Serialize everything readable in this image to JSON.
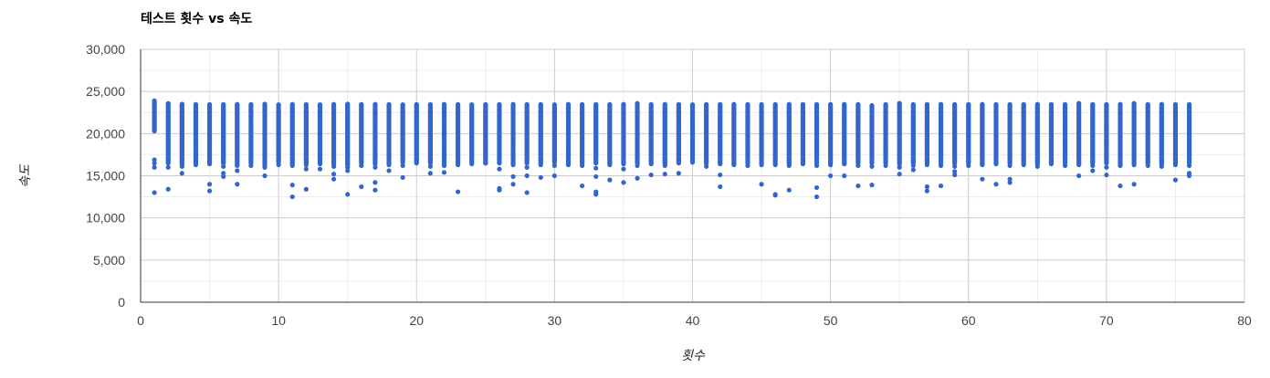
{
  "chart_data": {
    "type": "scatter",
    "title": "테스트 횟수 vs 속도",
    "xlabel": "횟수",
    "ylabel": "속도",
    "xlim": [
      0,
      80
    ],
    "ylim": [
      0,
      30000
    ],
    "x_ticks": [
      0,
      10,
      20,
      30,
      40,
      50,
      60,
      70,
      80
    ],
    "y_ticks": [
      0,
      5000,
      10000,
      15000,
      20000,
      25000,
      30000
    ],
    "x_tick_labels": [
      "0",
      "10",
      "20",
      "30",
      "40",
      "50",
      "60",
      "70",
      "80"
    ],
    "y_tick_labels": [
      "0",
      "5,000",
      "10,000",
      "15,000",
      "20,000",
      "25,000",
      "30,000"
    ],
    "grid": true,
    "legend": "none",
    "point_color": "#3366cc",
    "series": [
      {
        "comment_hidden": "",
        "dense_bands": [
          {
            "x": 1,
            "y_min": 20300,
            "y_max": 24000
          },
          {
            "x": 2,
            "y_min": 16500,
            "y_max": 23600
          },
          {
            "x": 3,
            "y_min": 16300,
            "y_max": 23500
          },
          {
            "x": 4,
            "y_min": 16500,
            "y_max": 23500
          },
          {
            "x": 5,
            "y_min": 16500,
            "y_max": 23500
          },
          {
            "x": 6,
            "y_min": 16500,
            "y_max": 23500
          },
          {
            "x": 7,
            "y_min": 16400,
            "y_max": 23500
          },
          {
            "x": 8,
            "y_min": 16500,
            "y_max": 23500
          },
          {
            "x": 9,
            "y_min": 16300,
            "y_max": 23500
          },
          {
            "x": 10,
            "y_min": 16600,
            "y_max": 23500
          },
          {
            "x": 11,
            "y_min": 16400,
            "y_max": 23500
          },
          {
            "x": 12,
            "y_min": 16500,
            "y_max": 23500
          },
          {
            "x": 13,
            "y_min": 16600,
            "y_max": 23500
          },
          {
            "x": 14,
            "y_min": 16400,
            "y_max": 23500
          },
          {
            "x": 15,
            "y_min": 16300,
            "y_max": 23600
          },
          {
            "x": 16,
            "y_min": 16500,
            "y_max": 23500
          },
          {
            "x": 17,
            "y_min": 16400,
            "y_max": 23500
          },
          {
            "x": 18,
            "y_min": 16500,
            "y_max": 23500
          },
          {
            "x": 19,
            "y_min": 16600,
            "y_max": 23500
          },
          {
            "x": 20,
            "y_min": 16500,
            "y_max": 23500
          },
          {
            "x": 21,
            "y_min": 16500,
            "y_max": 23500
          },
          {
            "x": 22,
            "y_min": 16400,
            "y_max": 23500
          },
          {
            "x": 23,
            "y_min": 16500,
            "y_max": 23500
          },
          {
            "x": 24,
            "y_min": 16600,
            "y_max": 23500
          },
          {
            "x": 25,
            "y_min": 16500,
            "y_max": 23500
          },
          {
            "x": 26,
            "y_min": 16500,
            "y_max": 23500
          },
          {
            "x": 27,
            "y_min": 16400,
            "y_max": 23500
          },
          {
            "x": 28,
            "y_min": 16500,
            "y_max": 23500
          },
          {
            "x": 29,
            "y_min": 16500,
            "y_max": 23500
          },
          {
            "x": 30,
            "y_min": 16600,
            "y_max": 23500
          },
          {
            "x": 31,
            "y_min": 16400,
            "y_max": 23500
          },
          {
            "x": 32,
            "y_min": 16500,
            "y_max": 23500
          },
          {
            "x": 33,
            "y_min": 16500,
            "y_max": 23500
          },
          {
            "x": 34,
            "y_min": 16500,
            "y_max": 23500
          },
          {
            "x": 35,
            "y_min": 16400,
            "y_max": 23500
          },
          {
            "x": 36,
            "y_min": 16500,
            "y_max": 23600
          },
          {
            "x": 37,
            "y_min": 16500,
            "y_max": 23500
          },
          {
            "x": 38,
            "y_min": 16400,
            "y_max": 23500
          },
          {
            "x": 39,
            "y_min": 16500,
            "y_max": 23500
          },
          {
            "x": 40,
            "y_min": 16600,
            "y_max": 23500
          },
          {
            "x": 41,
            "y_min": 16500,
            "y_max": 23500
          },
          {
            "x": 42,
            "y_min": 16500,
            "y_max": 23500
          },
          {
            "x": 43,
            "y_min": 16400,
            "y_max": 23500
          },
          {
            "x": 44,
            "y_min": 16500,
            "y_max": 23500
          },
          {
            "x": 45,
            "y_min": 16500,
            "y_max": 23500
          },
          {
            "x": 46,
            "y_min": 16500,
            "y_max": 23500
          },
          {
            "x": 47,
            "y_min": 16400,
            "y_max": 23500
          },
          {
            "x": 48,
            "y_min": 16500,
            "y_max": 23500
          },
          {
            "x": 49,
            "y_min": 16500,
            "y_max": 23500
          },
          {
            "x": 50,
            "y_min": 16500,
            "y_max": 23500
          },
          {
            "x": 51,
            "y_min": 16400,
            "y_max": 23500
          },
          {
            "x": 52,
            "y_min": 16500,
            "y_max": 23500
          },
          {
            "x": 53,
            "y_min": 16500,
            "y_max": 23400
          },
          {
            "x": 54,
            "y_min": 16500,
            "y_max": 23500
          },
          {
            "x": 55,
            "y_min": 16400,
            "y_max": 23600
          },
          {
            "x": 56,
            "y_min": 16500,
            "y_max": 23500
          },
          {
            "x": 57,
            "y_min": 16500,
            "y_max": 23500
          },
          {
            "x": 58,
            "y_min": 16400,
            "y_max": 23500
          },
          {
            "x": 59,
            "y_min": 16500,
            "y_max": 23500
          },
          {
            "x": 60,
            "y_min": 16500,
            "y_max": 23500
          },
          {
            "x": 61,
            "y_min": 16400,
            "y_max": 23500
          },
          {
            "x": 62,
            "y_min": 16500,
            "y_max": 23500
          },
          {
            "x": 63,
            "y_min": 16500,
            "y_max": 23500
          },
          {
            "x": 64,
            "y_min": 16500,
            "y_max": 23500
          },
          {
            "x": 65,
            "y_min": 16400,
            "y_max": 23500
          },
          {
            "x": 66,
            "y_min": 16500,
            "y_max": 23500
          },
          {
            "x": 67,
            "y_min": 16500,
            "y_max": 23500
          },
          {
            "x": 68,
            "y_min": 16400,
            "y_max": 23600
          },
          {
            "x": 69,
            "y_min": 16500,
            "y_max": 23500
          },
          {
            "x": 70,
            "y_min": 16500,
            "y_max": 23500
          },
          {
            "x": 71,
            "y_min": 16400,
            "y_max": 23500
          },
          {
            "x": 72,
            "y_min": 16500,
            "y_max": 23600
          },
          {
            "x": 73,
            "y_min": 16500,
            "y_max": 23500
          },
          {
            "x": 74,
            "y_min": 16400,
            "y_max": 23500
          },
          {
            "x": 75,
            "y_min": 16500,
            "y_max": 23500
          },
          {
            "x": 76,
            "y_min": 16500,
            "y_max": 23500
          }
        ],
        "outliers": [
          {
            "x": 1,
            "y": 16000
          },
          {
            "x": 1,
            "y": 16500
          },
          {
            "x": 1,
            "y": 16900
          },
          {
            "x": 1,
            "y": 13000
          },
          {
            "x": 2,
            "y": 13400
          },
          {
            "x": 2,
            "y": 16000
          },
          {
            "x": 3,
            "y": 15300
          },
          {
            "x": 3,
            "y": 16100
          },
          {
            "x": 4,
            "y": 16300
          },
          {
            "x": 5,
            "y": 13200
          },
          {
            "x": 5,
            "y": 14000
          },
          {
            "x": 5,
            "y": 16400
          },
          {
            "x": 6,
            "y": 14900
          },
          {
            "x": 6,
            "y": 15300
          },
          {
            "x": 6,
            "y": 16100
          },
          {
            "x": 7,
            "y": 14000
          },
          {
            "x": 7,
            "y": 15600
          },
          {
            "x": 7,
            "y": 16200
          },
          {
            "x": 8,
            "y": 16200
          },
          {
            "x": 9,
            "y": 15000
          },
          {
            "x": 9,
            "y": 16000
          },
          {
            "x": 10,
            "y": 16300
          },
          {
            "x": 11,
            "y": 12500
          },
          {
            "x": 11,
            "y": 13900
          },
          {
            "x": 11,
            "y": 16200
          },
          {
            "x": 12,
            "y": 13400
          },
          {
            "x": 12,
            "y": 15800
          },
          {
            "x": 12,
            "y": 16300
          },
          {
            "x": 13,
            "y": 15800
          },
          {
            "x": 13,
            "y": 16400
          },
          {
            "x": 14,
            "y": 14600
          },
          {
            "x": 14,
            "y": 15200
          },
          {
            "x": 14,
            "y": 16100
          },
          {
            "x": 15,
            "y": 12800
          },
          {
            "x": 15,
            "y": 15600
          },
          {
            "x": 15,
            "y": 16000
          },
          {
            "x": 16,
            "y": 13700
          },
          {
            "x": 16,
            "y": 16200
          },
          {
            "x": 17,
            "y": 13300
          },
          {
            "x": 17,
            "y": 14200
          },
          {
            "x": 17,
            "y": 16000
          },
          {
            "x": 18,
            "y": 15600
          },
          {
            "x": 18,
            "y": 16300
          },
          {
            "x": 19,
            "y": 14800
          },
          {
            "x": 19,
            "y": 16200
          },
          {
            "x": 21,
            "y": 15300
          },
          {
            "x": 21,
            "y": 16100
          },
          {
            "x": 22,
            "y": 15400
          },
          {
            "x": 22,
            "y": 16200
          },
          {
            "x": 23,
            "y": 13100
          },
          {
            "x": 23,
            "y": 16300
          },
          {
            "x": 24,
            "y": 16400
          },
          {
            "x": 25,
            "y": 16500
          },
          {
            "x": 26,
            "y": 13500
          },
          {
            "x": 26,
            "y": 13300
          },
          {
            "x": 26,
            "y": 15800
          },
          {
            "x": 27,
            "y": 14000
          },
          {
            "x": 27,
            "y": 14900
          },
          {
            "x": 27,
            "y": 16300
          },
          {
            "x": 28,
            "y": 13000
          },
          {
            "x": 28,
            "y": 15000
          },
          {
            "x": 28,
            "y": 16000
          },
          {
            "x": 29,
            "y": 14800
          },
          {
            "x": 29,
            "y": 16300
          },
          {
            "x": 30,
            "y": 15000
          },
          {
            "x": 30,
            "y": 16200
          },
          {
            "x": 31,
            "y": 16300
          },
          {
            "x": 32,
            "y": 13800
          },
          {
            "x": 32,
            "y": 16200
          },
          {
            "x": 33,
            "y": 12800
          },
          {
            "x": 33,
            "y": 13100
          },
          {
            "x": 33,
            "y": 14900
          },
          {
            "x": 33,
            "y": 15900
          },
          {
            "x": 34,
            "y": 14500
          },
          {
            "x": 34,
            "y": 16300
          },
          {
            "x": 35,
            "y": 14200
          },
          {
            "x": 35,
            "y": 15800
          },
          {
            "x": 36,
            "y": 14700
          },
          {
            "x": 36,
            "y": 16200
          },
          {
            "x": 37,
            "y": 15100
          },
          {
            "x": 37,
            "y": 16400
          },
          {
            "x": 38,
            "y": 15200
          },
          {
            "x": 38,
            "y": 16200
          },
          {
            "x": 39,
            "y": 15300
          },
          {
            "x": 41,
            "y": 16100
          },
          {
            "x": 42,
            "y": 13700
          },
          {
            "x": 42,
            "y": 15100
          },
          {
            "x": 42,
            "y": 16400
          },
          {
            "x": 43,
            "y": 16300
          },
          {
            "x": 44,
            "y": 16200
          },
          {
            "x": 45,
            "y": 14000
          },
          {
            "x": 45,
            "y": 16300
          },
          {
            "x": 46,
            "y": 12800
          },
          {
            "x": 46,
            "y": 12700
          },
          {
            "x": 46,
            "y": 16300
          },
          {
            "x": 47,
            "y": 13300
          },
          {
            "x": 47,
            "y": 16200
          },
          {
            "x": 48,
            "y": 16400
          },
          {
            "x": 49,
            "y": 12500
          },
          {
            "x": 49,
            "y": 13600
          },
          {
            "x": 49,
            "y": 16200
          },
          {
            "x": 50,
            "y": 15000
          },
          {
            "x": 50,
            "y": 16300
          },
          {
            "x": 51,
            "y": 15000
          },
          {
            "x": 51,
            "y": 16400
          },
          {
            "x": 52,
            "y": 13800
          },
          {
            "x": 52,
            "y": 16200
          },
          {
            "x": 53,
            "y": 13900
          },
          {
            "x": 53,
            "y": 16100
          },
          {
            "x": 54,
            "y": 16200
          },
          {
            "x": 55,
            "y": 15200
          },
          {
            "x": 55,
            "y": 16000
          },
          {
            "x": 56,
            "y": 15700
          },
          {
            "x": 56,
            "y": 16200
          },
          {
            "x": 57,
            "y": 13200
          },
          {
            "x": 57,
            "y": 13700
          },
          {
            "x": 57,
            "y": 16300
          },
          {
            "x": 58,
            "y": 13800
          },
          {
            "x": 58,
            "y": 16200
          },
          {
            "x": 59,
            "y": 15100
          },
          {
            "x": 59,
            "y": 15500
          },
          {
            "x": 59,
            "y": 16100
          },
          {
            "x": 60,
            "y": 16200
          },
          {
            "x": 61,
            "y": 14600
          },
          {
            "x": 61,
            "y": 16300
          },
          {
            "x": 62,
            "y": 14000
          },
          {
            "x": 62,
            "y": 16400
          },
          {
            "x": 63,
            "y": 14200
          },
          {
            "x": 63,
            "y": 14600
          },
          {
            "x": 63,
            "y": 16200
          },
          {
            "x": 64,
            "y": 16300
          },
          {
            "x": 65,
            "y": 16100
          },
          {
            "x": 66,
            "y": 16400
          },
          {
            "x": 67,
            "y": 16200
          },
          {
            "x": 68,
            "y": 15000
          },
          {
            "x": 68,
            "y": 16300
          },
          {
            "x": 69,
            "y": 15600
          },
          {
            "x": 69,
            "y": 16200
          },
          {
            "x": 70,
            "y": 15100
          },
          {
            "x": 70,
            "y": 16000
          },
          {
            "x": 71,
            "y": 13800
          },
          {
            "x": 71,
            "y": 16200
          },
          {
            "x": 72,
            "y": 14000
          },
          {
            "x": 72,
            "y": 16300
          },
          {
            "x": 73,
            "y": 16200
          },
          {
            "x": 74,
            "y": 16100
          },
          {
            "x": 75,
            "y": 14500
          },
          {
            "x": 75,
            "y": 16300
          },
          {
            "x": 76,
            "y": 15000
          },
          {
            "x": 76,
            "y": 15300
          },
          {
            "x": 76,
            "y": 16200
          }
        ]
      }
    ]
  }
}
